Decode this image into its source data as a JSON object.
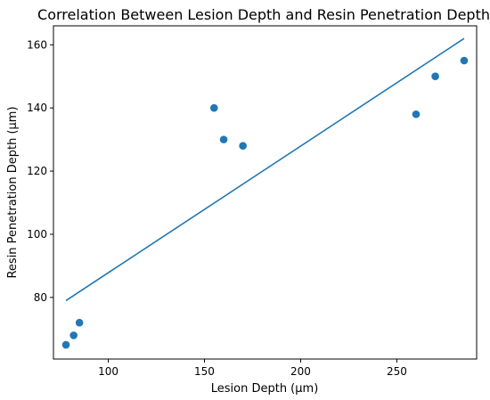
{
  "chart_data": {
    "type": "scatter",
    "title": "Correlation Between Lesion Depth and Resin Penetration Depth",
    "xlabel": "Lesion Depth (μm)",
    "ylabel": "Resin Penetration Depth (μm)",
    "xlim": [
      71.5,
      291.5
    ],
    "ylim": [
      60.5,
      166
    ],
    "xticks": [
      100,
      150,
      200,
      250
    ],
    "yticks": [
      80,
      100,
      120,
      140,
      160
    ],
    "grid": false,
    "points": [
      {
        "x": 78,
        "y": 65
      },
      {
        "x": 82,
        "y": 68
      },
      {
        "x": 85,
        "y": 72
      },
      {
        "x": 155,
        "y": 140
      },
      {
        "x": 160,
        "y": 130
      },
      {
        "x": 170,
        "y": 128
      },
      {
        "x": 260,
        "y": 138
      },
      {
        "x": 270,
        "y": 150
      },
      {
        "x": 285,
        "y": 155
      }
    ],
    "trend_line": {
      "x": [
        78,
        285
      ],
      "y": [
        79,
        162
      ]
    },
    "colors": {
      "marker": "#1f77b4",
      "line": "#1f77b4",
      "axes": "#000000"
    }
  }
}
